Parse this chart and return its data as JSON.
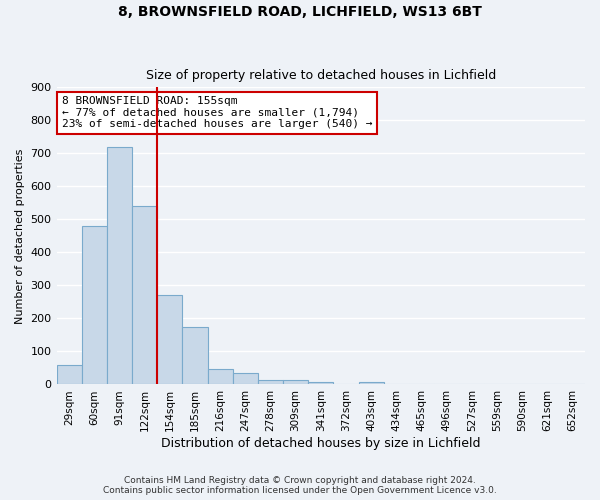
{
  "title": "8, BROWNSFIELD ROAD, LICHFIELD, WS13 6BT",
  "subtitle": "Size of property relative to detached houses in Lichfield",
  "xlabel": "Distribution of detached houses by size in Lichfield",
  "ylabel": "Number of detached properties",
  "bar_labels": [
    "29sqm",
    "60sqm",
    "91sqm",
    "122sqm",
    "154sqm",
    "185sqm",
    "216sqm",
    "247sqm",
    "278sqm",
    "309sqm",
    "341sqm",
    "372sqm",
    "403sqm",
    "434sqm",
    "465sqm",
    "496sqm",
    "527sqm",
    "559sqm",
    "590sqm",
    "621sqm",
    "652sqm"
  ],
  "bar_values": [
    60,
    480,
    720,
    540,
    270,
    175,
    48,
    35,
    14,
    14,
    8,
    0,
    8,
    0,
    0,
    0,
    0,
    0,
    0,
    0,
    0
  ],
  "bar_color": "#c8d8e8",
  "bar_edge_color": "#7aaacc",
  "ylim": [
    0,
    900
  ],
  "yticks": [
    0,
    100,
    200,
    300,
    400,
    500,
    600,
    700,
    800,
    900
  ],
  "property_line_color": "#cc0000",
  "annotation_box_text": "8 BROWNSFIELD ROAD: 155sqm\n← 77% of detached houses are smaller (1,794)\n23% of semi-detached houses are larger (540) →",
  "annotation_box_facecolor": "white",
  "annotation_box_edgecolor": "#cc0000",
  "footer_line1": "Contains HM Land Registry data © Crown copyright and database right 2024.",
  "footer_line2": "Contains public sector information licensed under the Open Government Licence v3.0.",
  "background_color": "#eef2f7",
  "grid_color": "#d0dae8"
}
